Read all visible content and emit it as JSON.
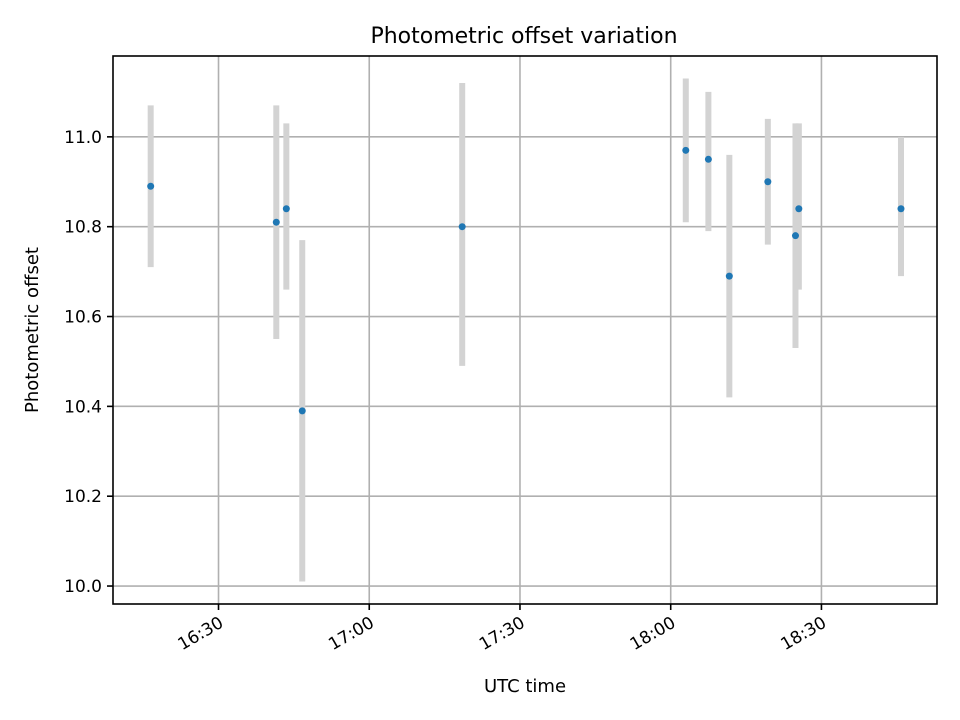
{
  "chart_data": {
    "type": "scatter",
    "title": "Photometric offset variation",
    "xlabel": "UTC time",
    "ylabel": "Photometric offset",
    "x_format": "HH:MM",
    "xlim": [
      "16:09",
      "18:53"
    ],
    "ylim": [
      9.96,
      11.18
    ],
    "x_ticks": [
      "16:30",
      "17:00",
      "17:30",
      "18:00",
      "18:30"
    ],
    "y_ticks": [
      "10.0",
      "10.2",
      "10.4",
      "10.6",
      "10.8",
      "11.0"
    ],
    "grid": true,
    "legend": "none",
    "marker_color": "#1f77b4",
    "errorbar_color": "#d3d3d3",
    "points": [
      {
        "x": "16:16:30",
        "y": 10.89,
        "ylow": 10.71,
        "yhigh": 11.07
      },
      {
        "x": "16:41:30",
        "y": 10.81,
        "ylow": 10.55,
        "yhigh": 11.07
      },
      {
        "x": "16:43:30",
        "y": 10.84,
        "ylow": 10.66,
        "yhigh": 11.03
      },
      {
        "x": "16:46:40",
        "y": 10.39,
        "ylow": 10.01,
        "yhigh": 10.77
      },
      {
        "x": "17:18:30",
        "y": 10.8,
        "ylow": 10.49,
        "yhigh": 11.12
      },
      {
        "x": "18:03:00",
        "y": 10.97,
        "ylow": 10.81,
        "yhigh": 11.13
      },
      {
        "x": "18:07:30",
        "y": 10.95,
        "ylow": 10.79,
        "yhigh": 11.1
      },
      {
        "x": "18:11:40",
        "y": 10.69,
        "ylow": 10.42,
        "yhigh": 10.96
      },
      {
        "x": "18:19:20",
        "y": 10.9,
        "ylow": 10.76,
        "yhigh": 11.04
      },
      {
        "x": "18:24:50",
        "y": 10.78,
        "ylow": 10.53,
        "yhigh": 11.03
      },
      {
        "x": "18:25:30",
        "y": 10.84,
        "ylow": 10.66,
        "yhigh": 11.03
      },
      {
        "x": "18:45:50",
        "y": 10.84,
        "ylow": 10.69,
        "yhigh": 11.0
      }
    ]
  }
}
